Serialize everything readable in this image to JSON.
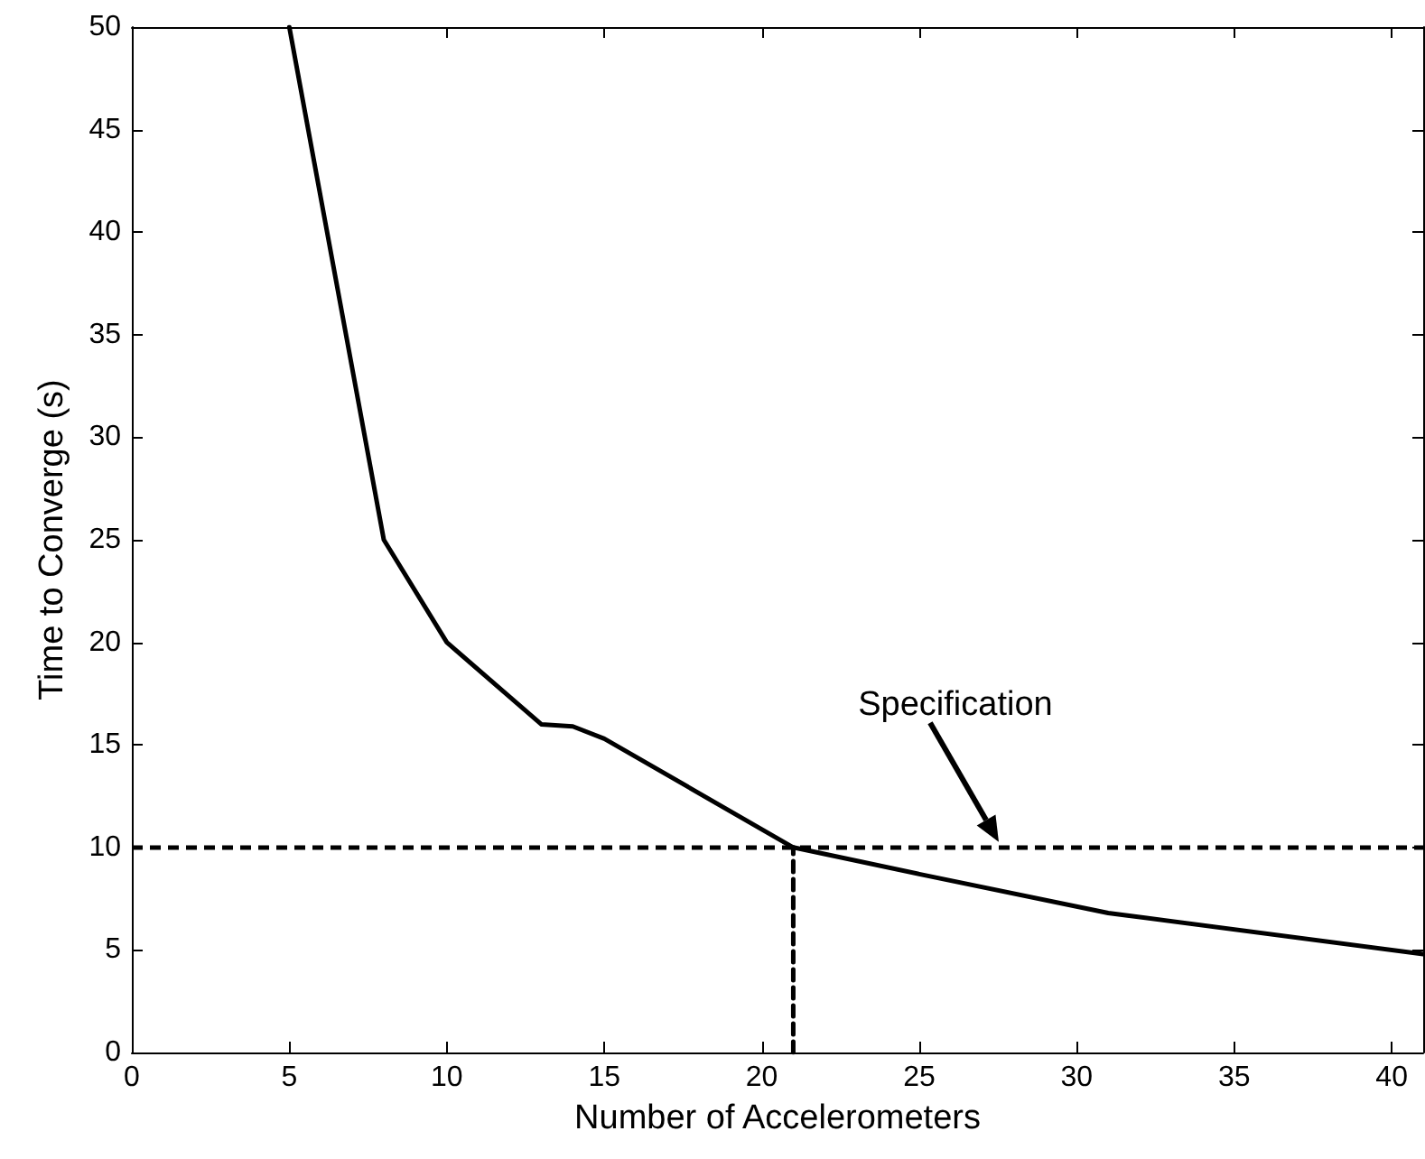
{
  "chart_data": {
    "type": "line",
    "xlabel": "Number of Accelerometers",
    "ylabel": "Time to Converge (s)",
    "xlim": [
      0,
      41
    ],
    "xticks": [
      0,
      5,
      10,
      15,
      20,
      25,
      30,
      35,
      40
    ],
    "ylim": [
      0,
      50
    ],
    "yticks": [
      0,
      5,
      10,
      15,
      20,
      25,
      30,
      35,
      40,
      45,
      50
    ],
    "grid": false,
    "marker": "none",
    "series": [
      {
        "color": "#000000",
        "x": [
          5,
          8,
          10,
          13,
          14,
          15,
          21,
          25,
          31,
          41
        ],
        "values": [
          50,
          25,
          20,
          16,
          15.9,
          15.3,
          10,
          8.7,
          6.8,
          4.8
        ],
        "line_style": "solid"
      },
      {
        "color": "#000000",
        "x": [
          21,
          21
        ],
        "values": [
          0,
          10
        ],
        "line_style": "dashed"
      }
    ],
    "ref_lines": [
      {
        "axis": "y",
        "value": 10,
        "color": "#000000",
        "line_style": "dashed"
      }
    ],
    "annotations": [
      "Specification"
    ]
  }
}
